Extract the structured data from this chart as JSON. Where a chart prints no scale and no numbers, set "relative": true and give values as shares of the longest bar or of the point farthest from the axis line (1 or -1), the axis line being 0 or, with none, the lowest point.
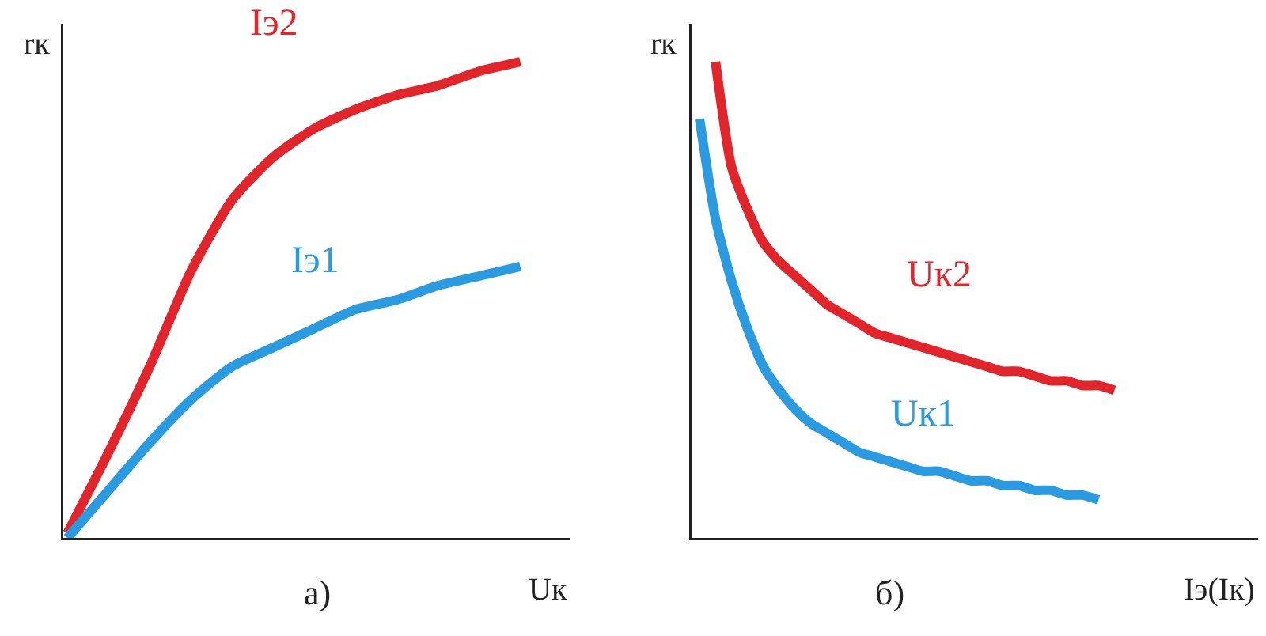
{
  "chart_data": [
    {
      "type": "line",
      "relative": true,
      "xlabel": "Uк",
      "ylabel": "rк",
      "annotations": [
        "а)"
      ],
      "categories": [
        null,
        null,
        null,
        null,
        null,
        null,
        null,
        null,
        null,
        null,
        null,
        null
      ],
      "series": [
        {
          "name": "Iэ2",
          "color": "#e2252b",
          "values": [
            0.01,
            0.18,
            0.36,
            0.56,
            0.71,
            0.8,
            0.86,
            0.9,
            0.93,
            0.95,
            0.98,
            1
          ]
        },
        {
          "name": "Iэ1",
          "color": "#2a9be0",
          "values": [
            0,
            0.1,
            0.2,
            0.29,
            0.36,
            0.4,
            0.44,
            0.48,
            0.5,
            0.53,
            0.55,
            0.57
          ]
        }
      ]
    },
    {
      "type": "line",
      "relative": true,
      "xlabel": "Iэ(Iк)",
      "ylabel": "rк",
      "annotations": [
        "б)"
      ],
      "categories": [
        null,
        null,
        null,
        null,
        null,
        null,
        null,
        null,
        null,
        null,
        null,
        null,
        null,
        null,
        null,
        null,
        null,
        null,
        null,
        null,
        null,
        null,
        null,
        null,
        null,
        null,
        null
      ],
      "series": [
        {
          "name": "Uк2",
          "color": "#e2252b",
          "values": [
            null,
            1,
            0.78,
            0.69,
            0.62,
            0.58,
            0.55,
            0.52,
            0.49,
            0.47,
            0.45,
            0.43,
            0.42,
            0.41,
            0.4,
            0.39,
            0.38,
            0.37,
            0.36,
            0.35,
            0.35,
            0.34,
            0.33,
            0.33,
            0.32,
            0.32,
            0.31
          ]
        },
        {
          "name": "Uк1",
          "color": "#2a9be0",
          "values": [
            0.88,
            0.67,
            0.54,
            0.44,
            0.36,
            0.31,
            0.27,
            0.24,
            0.22,
            0.2,
            0.18,
            0.17,
            0.16,
            0.15,
            0.14,
            0.14,
            0.13,
            0.12,
            0.12,
            0.11,
            0.11,
            0.1,
            0.1,
            0.09,
            0.09,
            0.08,
            null
          ]
        }
      ]
    }
  ]
}
